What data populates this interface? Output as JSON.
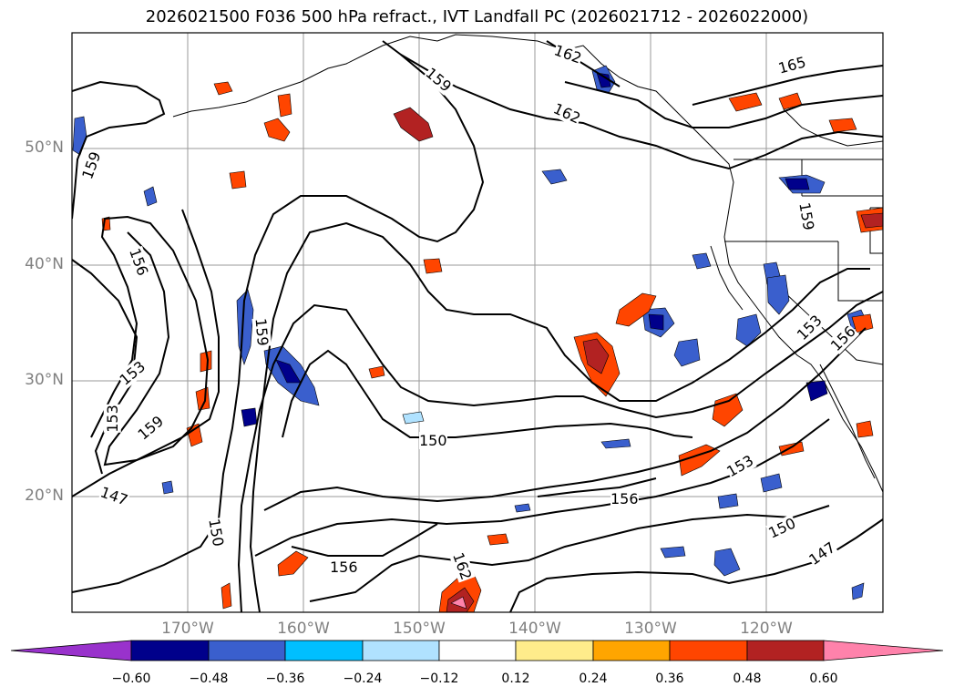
{
  "title": "2026021500 F036 500 hPa refract., IVT Landfall PC (2026021712 - 2026022000)",
  "map": {
    "lat_labels": [
      "50°N",
      "40°N",
      "30°N",
      "20°N"
    ],
    "lon_labels": [
      "170°W",
      "160°W",
      "150°W",
      "140°W",
      "130°W",
      "120°W"
    ],
    "contour_labels": [
      "159",
      "156",
      "153",
      "153",
      "159",
      "147",
      "150",
      "159",
      "156",
      "150",
      "159",
      "162",
      "162",
      "165",
      "159",
      "153",
      "156",
      "153",
      "156",
      "150",
      "147",
      "162"
    ]
  },
  "colorbar": {
    "colors": [
      "#9932CC",
      "#00008B",
      "#3A5FCD",
      "#00BFFF",
      "#B0E2FF",
      "#FFFFFF",
      "#FFEC8B",
      "#FFA500",
      "#FF4500",
      "#B22222",
      "#FF82AB"
    ],
    "ticks": [
      "−0.60",
      "−0.48",
      "−0.36",
      "−0.24",
      "−0.12",
      "0.12",
      "0.24",
      "0.36",
      "0.48",
      "0.60"
    ]
  }
}
